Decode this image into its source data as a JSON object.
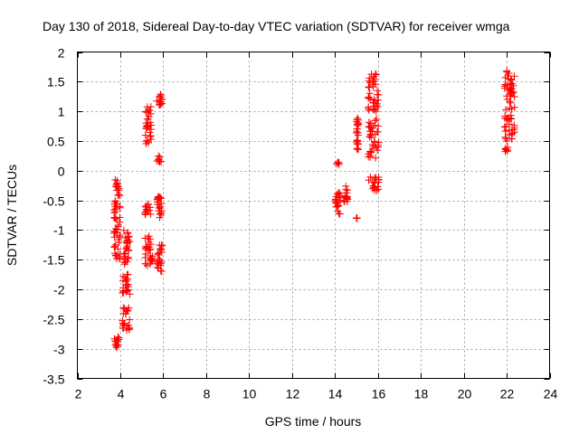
{
  "chart_data": {
    "type": "scatter",
    "title": "Day 130 of 2018, Sidereal Day-to-day VTEC variation (SDTVAR) for receiver wmga",
    "xlabel": "GPS time / hours",
    "ylabel": "SDTVAR / TECUs",
    "xlim": [
      2,
      24
    ],
    "ylim": [
      -3.5,
      2
    ],
    "xticks": [
      2,
      4,
      6,
      8,
      10,
      12,
      14,
      16,
      18,
      20,
      22,
      24
    ],
    "yticks": [
      2,
      1.5,
      1,
      0.5,
      0,
      -0.5,
      -1,
      -1.5,
      -2,
      -2.5,
      -3,
      -3.5
    ],
    "xtick_labels": [
      "2",
      "4",
      "6",
      "8",
      "10",
      "12",
      "14",
      "16",
      "18",
      "20",
      "22",
      "24"
    ],
    "ytick_labels": [
      "2",
      "1.5",
      "1",
      "0.5",
      "0",
      "-0.5",
      "-1",
      "-1.5",
      "-2",
      "-2.5",
      "-3",
      "-3.5"
    ],
    "grid": true,
    "marker": "plus",
    "color": "#ff0000",
    "series": [
      {
        "name": "SDTVAR",
        "clusters": [
          {
            "x": [
              3.7,
              3.95
            ],
            "y": [
              -3.0,
              -2.8
            ]
          },
          {
            "x": [
              3.7,
              4.0
            ],
            "y": [
              -1.5,
              -0.15
            ]
          },
          {
            "x": [
              4.1,
              4.45
            ],
            "y": [
              -2.75,
              -2.3
            ]
          },
          {
            "x": [
              4.1,
              4.45
            ],
            "y": [
              -2.1,
              -1.75
            ]
          },
          {
            "x": [
              4.15,
              4.45
            ],
            "y": [
              -1.6,
              -1.0
            ]
          },
          {
            "x": [
              5.15,
              5.5
            ],
            "y": [
              -1.6,
              -1.4
            ]
          },
          {
            "x": [
              5.15,
              5.45
            ],
            "y": [
              -1.35,
              -1.1
            ]
          },
          {
            "x": [
              5.15,
              5.45
            ],
            "y": [
              -0.75,
              -0.55
            ]
          },
          {
            "x": [
              5.15,
              5.45
            ],
            "y": [
              0.45,
              1.1
            ]
          },
          {
            "x": [
              5.7,
              5.95
            ],
            "y": [
              1.1,
              1.3
            ]
          },
          {
            "x": [
              5.7,
              5.95
            ],
            "y": [
              0.15,
              0.25
            ]
          },
          {
            "x": [
              5.7,
              5.95
            ],
            "y": [
              -0.8,
              -0.4
            ]
          },
          {
            "x": [
              5.7,
              5.95
            ],
            "y": [
              -1.7,
              -1.25
            ]
          },
          {
            "x": [
              14.0,
              14.2
            ],
            "y": [
              0.1,
              0.15
            ]
          },
          {
            "x": [
              14.0,
              14.25
            ],
            "y": [
              -0.75,
              -0.35
            ]
          },
          {
            "x": [
              14.4,
              14.6
            ],
            "y": [
              -0.55,
              -0.25
            ]
          },
          {
            "x": [
              15.0,
              15.1
            ],
            "y": [
              0.35,
              0.95
            ]
          },
          {
            "x": [
              15.0,
              15.05
            ],
            "y": [
              -0.8,
              -0.8
            ]
          },
          {
            "x": [
              15.55,
              16.05
            ],
            "y": [
              1.0,
              1.7
            ]
          },
          {
            "x": [
              15.55,
              16.05
            ],
            "y": [
              0.2,
              0.9
            ]
          },
          {
            "x": [
              15.55,
              16.05
            ],
            "y": [
              -0.35,
              -0.1
            ]
          },
          {
            "x": [
              21.9,
              22.4
            ],
            "y": [
              1.0,
              1.7
            ]
          },
          {
            "x": [
              21.9,
              22.4
            ],
            "y": [
              0.5,
              0.95
            ]
          },
          {
            "x": [
              21.9,
              22.05
            ],
            "y": [
              0.3,
              0.4
            ]
          }
        ]
      }
    ]
  }
}
